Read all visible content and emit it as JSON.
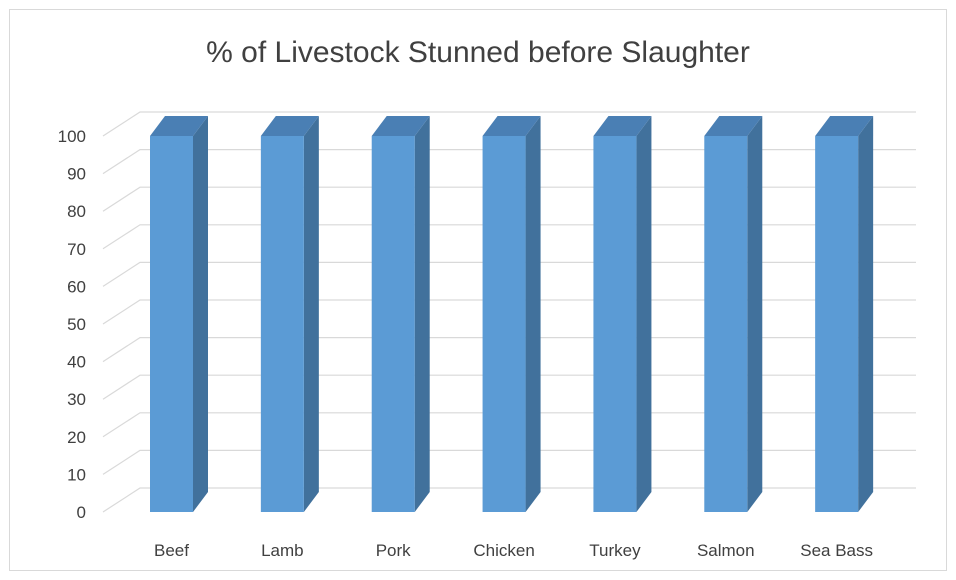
{
  "chart_data": {
    "type": "bar",
    "title": "% of Livestock Stunned before Slaughter",
    "xlabel": "",
    "ylabel": "",
    "categories": [
      "Beef",
      "Lamb",
      "Pork",
      "Chicken",
      "Turkey",
      "Salmon",
      "Sea Bass"
    ],
    "values": [
      100,
      100,
      100,
      100,
      100,
      100,
      100
    ],
    "ylim": [
      0,
      100
    ],
    "yticks": [
      "0",
      "10",
      "20",
      "30",
      "40",
      "50",
      "60",
      "70",
      "80",
      "90",
      "100"
    ],
    "grid": true,
    "legend": "none",
    "colors": {
      "bar_front": "#5b9bd5",
      "bar_side": "#41719c",
      "bar_top": "#4a7fb4",
      "grid": "#d9d9d9"
    }
  }
}
